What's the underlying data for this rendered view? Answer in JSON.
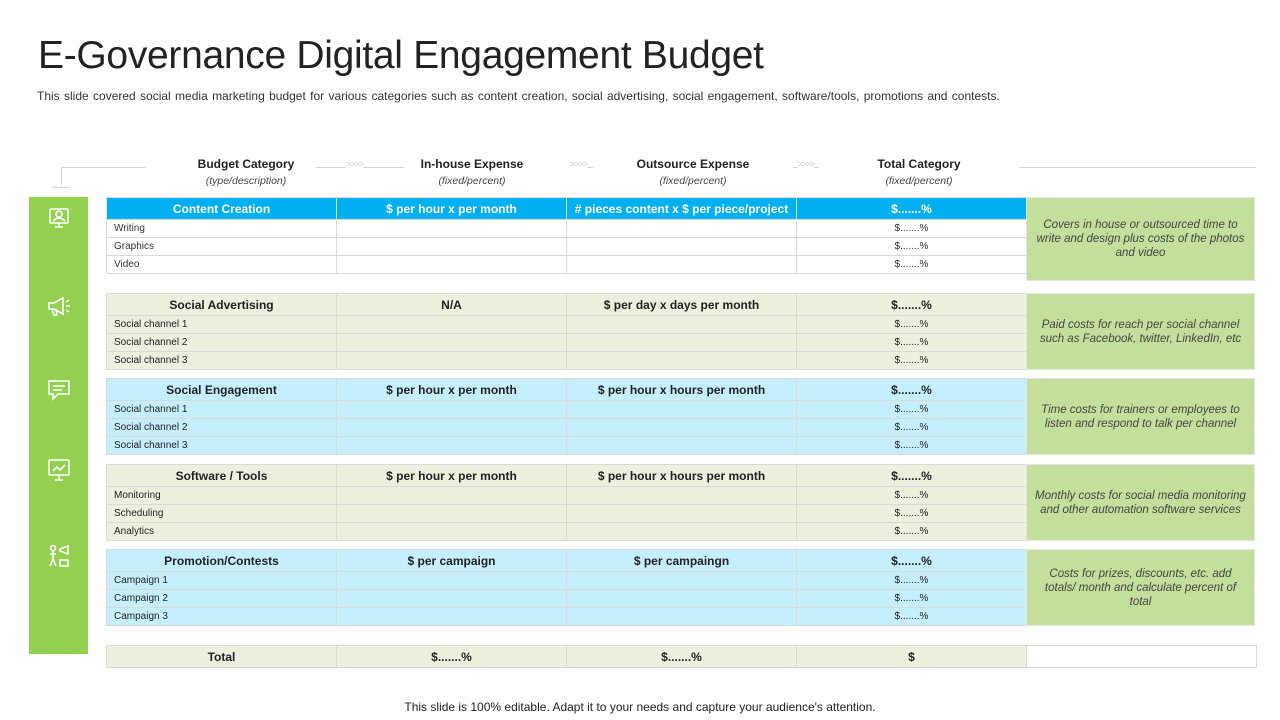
{
  "title": "E-Governance Digital Engagement Budget",
  "subtitle": "This slide covered social media marketing budget for various categories such as content creation, social advertising, social engagement, software/tools, promotions and contests.",
  "headers": [
    {
      "label": "Budget Category",
      "sub": "(type/description)"
    },
    {
      "label": "In-house Expense",
      "sub": "(fixed/percent)"
    },
    {
      "label": "Outsource Expense",
      "sub": "(fixed/percent)"
    },
    {
      "label": "Total Category",
      "sub": "(fixed/percent)"
    }
  ],
  "chevron": ">>>>",
  "sections": [
    {
      "name": "Content Creation",
      "inhouse": "$ per hour x per month",
      "outsource": "# pieces content x $ per piece/project",
      "total": "$.......%",
      "rows": [
        {
          "label": "Writing",
          "total": "$.......%"
        },
        {
          "label": "Graphics",
          "total": "$.......%"
        },
        {
          "label": "Video",
          "total": "$.......%"
        }
      ],
      "note": "Covers in house or outsourced time to write and design plus costs of the photos and video"
    },
    {
      "name": "Social Advertising",
      "inhouse": "N/A",
      "outsource": "$ per day x days per month",
      "total": "$.......%",
      "rows": [
        {
          "label": "Social channel 1",
          "total": "$.......%"
        },
        {
          "label": "Social channel 2",
          "total": "$.......%"
        },
        {
          "label": "Social channel 3",
          "total": "$.......%"
        }
      ],
      "note": "Paid costs for reach per social channel such as Facebook, twitter, LinkedIn, etc"
    },
    {
      "name": "Social Engagement",
      "inhouse": "$ per hour x per month",
      "outsource": "$ per hour x hours per month",
      "total": "$.......%",
      "rows": [
        {
          "label": "Social channel 1",
          "total": "$.......%"
        },
        {
          "label": "Social channel 2",
          "total": "$.......%"
        },
        {
          "label": "Social channel 3",
          "total": "$.......%"
        }
      ],
      "note": "Time costs for trainers or employees to listen and respond to talk per channel"
    },
    {
      "name": "Software / Tools",
      "inhouse": "$ per hour x per month",
      "outsource": "$ per hour x hours per month",
      "total": "$.......%",
      "rows": [
        {
          "label": "Monitoring",
          "total": "$.......%"
        },
        {
          "label": "Scheduling",
          "total": "$.......%"
        },
        {
          "label": "Analytics",
          "total": "$.......%"
        }
      ],
      "note": "Monthly costs for social media monitoring and other automation software services"
    },
    {
      "name": "Promotion/Contests",
      "inhouse": "$ per campaign",
      "outsource": "$ per campaingn",
      "total": "$.......%",
      "rows": [
        {
          "label": "Campaign 1",
          "total": "$.......%"
        },
        {
          "label": "Campaign 2",
          "total": "$.......%"
        },
        {
          "label": "Campaign 3",
          "total": "$.......%"
        }
      ],
      "note": "Costs for prizes, discounts, etc. add totals/ month and calculate percent of total"
    }
  ],
  "total_row": {
    "label": "Total",
    "inhouse": "$.......%",
    "outsource": "$.......%",
    "total": "$"
  },
  "footer": "This slide is 100% editable. Adapt it to your needs and capture your audience's attention.",
  "colors": {
    "sidebar": "#92d050",
    "header_blue": "#00b0f0",
    "light_blue": "#c6effd",
    "light_green": "#ebf1de",
    "note_green": "#c4df9b"
  },
  "icons": [
    "presentation-icon",
    "megaphone-icon",
    "chat-icon",
    "monitor-icon",
    "contest-icon"
  ]
}
